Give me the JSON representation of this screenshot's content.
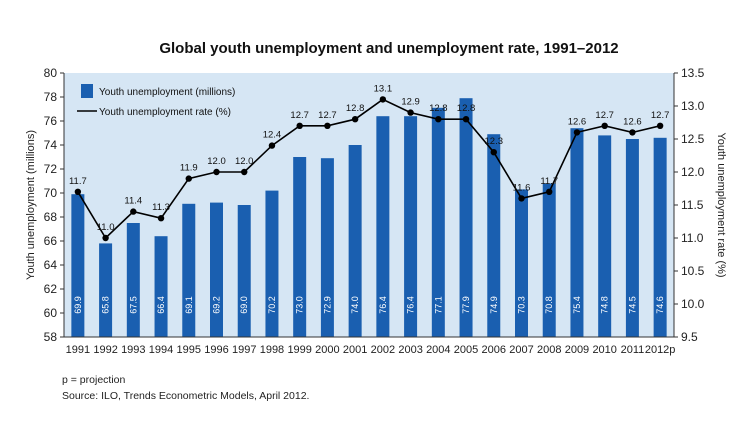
{
  "notes": {
    "projection": "p = projection",
    "source": "Source: ILO, Trends Econometric Models, April 2012."
  },
  "colors": {
    "plot_background": "#d6e6f4",
    "bar": "#1a5fb0",
    "line": "#000000"
  },
  "chart_data": {
    "type": "bar",
    "title": "Global youth unemployment and unemployment rate, 1991–2012",
    "categories": [
      "1991",
      "1992",
      "1993",
      "1994",
      "1995",
      "1996",
      "1997",
      "1998",
      "1999",
      "2000",
      "2001",
      "2002",
      "2003",
      "2004",
      "2005",
      "2006",
      "2007",
      "2008",
      "2009",
      "2010",
      "2011",
      "2012p"
    ],
    "series": [
      {
        "name": "Youth unemployment (millions)",
        "type": "bar",
        "axis": "left",
        "values": [
          69.9,
          65.8,
          67.5,
          66.4,
          69.1,
          69.2,
          69.0,
          70.2,
          73.0,
          72.9,
          74.0,
          76.4,
          76.4,
          77.1,
          77.9,
          74.9,
          70.3,
          70.8,
          75.4,
          74.8,
          74.5,
          74.6
        ],
        "labels": [
          "69.9",
          "65.8",
          "67.5",
          "66.4",
          "69.1",
          "69.2",
          "69.0",
          "70.2",
          "73.0",
          "72.9",
          "74.0",
          "76.4",
          "76.4",
          "77.1",
          "77.9",
          "74.9",
          "70.3",
          "70.8",
          "75.4",
          "74.8",
          "74.5",
          "74.6"
        ]
      },
      {
        "name": "Youth unemployment rate (%)",
        "type": "line",
        "axis": "right",
        "values": [
          11.7,
          11.0,
          11.4,
          11.3,
          11.9,
          12.0,
          12.0,
          12.4,
          12.7,
          12.7,
          12.8,
          13.1,
          12.9,
          12.8,
          12.8,
          12.3,
          11.6,
          11.7,
          12.6,
          12.7,
          12.6,
          12.7
        ],
        "labels": [
          "11.7",
          "11.0",
          "11.4",
          "11.3",
          "11.9",
          "12.0",
          "12.0",
          "12.4",
          "12.7",
          "12.7",
          "12.8",
          "13.1",
          "12.9",
          "12.8",
          "12.8",
          "12.3",
          "11.6",
          "11.7",
          "12.6",
          "12.7",
          "12.6",
          "12.7"
        ]
      }
    ],
    "ylabel": "Youth unemployment (millions)",
    "ylim": [
      58,
      80
    ],
    "yticks": [
      "58",
      "60",
      "62",
      "64",
      "66",
      "68",
      "70",
      "72",
      "74",
      "76",
      "78",
      "80"
    ],
    "y2label": "Youth unemployment rate (%)",
    "y2lim": [
      9.5,
      13.5
    ],
    "y2ticks": [
      "9.5",
      "10.0",
      "10.5",
      "11.0",
      "11.5",
      "12.0",
      "12.5",
      "13.0",
      "13.5"
    ],
    "grid": false,
    "legend_position": "top-left"
  }
}
